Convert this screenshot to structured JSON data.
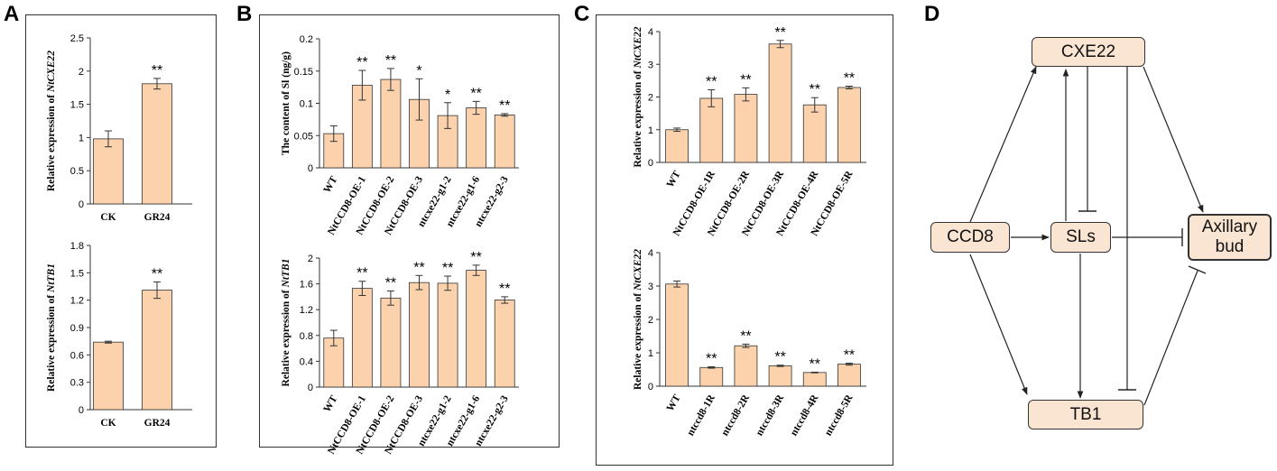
{
  "colors": {
    "bar": "#fcd2ad",
    "bar_stroke": "#333333",
    "node_fill": "#fae4d2"
  },
  "panels": {
    "A": "A",
    "B": "B",
    "C": "C",
    "D": "D"
  },
  "chart_data": [
    {
      "id": "A1",
      "type": "bar",
      "ylabel": [
        "Relative expression of ",
        "NtCXE22"
      ],
      "ylim": [
        0,
        2.5
      ],
      "yticks": [
        "0",
        "0.5",
        "1",
        "1.5",
        "2",
        "2.5"
      ],
      "categories": [
        "CK",
        "GR24"
      ],
      "values": [
        0.98,
        1.81
      ],
      "errors": [
        0.12,
        0.08
      ],
      "sig": [
        "",
        "**"
      ]
    },
    {
      "id": "A2",
      "type": "bar",
      "ylabel": [
        "Relative expression of ",
        "NtTB1"
      ],
      "ylim": [
        0,
        1.8
      ],
      "yticks": [
        "0",
        "0.3",
        "0.6",
        "0.9",
        "1.2",
        "1.5",
        "1.8"
      ],
      "categories": [
        "CK",
        "GR24"
      ],
      "values": [
        0.74,
        1.31
      ],
      "errors": [
        0.01,
        0.09
      ],
      "sig": [
        "",
        "**"
      ]
    },
    {
      "id": "B1",
      "type": "bar",
      "ylabel": [
        "The content of Sl (ng/g)",
        ""
      ],
      "ylim": [
        0,
        0.2
      ],
      "yticks": [
        "0",
        "0.05",
        "0.1",
        "0.15",
        "0.2"
      ],
      "categories": [
        "WT",
        "NtCCD8-OE-1",
        "NtCCD8-OE-2",
        "NtCCD8-OE-3",
        "ntcxe22-g1-2",
        "ntcxe22-g1-6",
        "ntcxe22-g2-3"
      ],
      "values": [
        0.053,
        0.128,
        0.137,
        0.106,
        0.081,
        0.093,
        0.082
      ],
      "errors": [
        0.012,
        0.023,
        0.017,
        0.032,
        0.02,
        0.01,
        0.002
      ],
      "sig": [
        "",
        "**",
        "**",
        "*",
        "*",
        "**",
        "**"
      ]
    },
    {
      "id": "B2",
      "type": "bar",
      "ylabel": [
        "Relative expression of ",
        "NtTB1"
      ],
      "ylim": [
        0,
        2
      ],
      "yticks": [
        "0",
        "0.4",
        "0.8",
        "1.2",
        "1.6",
        "2"
      ],
      "categories": [
        "WT",
        "NtCCD8-OE-1",
        "NtCCD8-OE-2",
        "NtCCD8-OE-3",
        "ntcxe22-g1-2",
        "ntcxe22-g1-6",
        "ntcxe22-g2-3"
      ],
      "values": [
        0.76,
        1.53,
        1.38,
        1.62,
        1.61,
        1.81,
        1.35
      ],
      "errors": [
        0.12,
        0.11,
        0.11,
        0.11,
        0.11,
        0.08,
        0.05
      ],
      "sig": [
        "",
        "**",
        "**",
        "**",
        "**",
        "**",
        "**"
      ]
    },
    {
      "id": "C1",
      "type": "bar",
      "ylabel": [
        "Relative expression of ",
        "NtCXE22"
      ],
      "ylim": [
        0,
        4
      ],
      "yticks": [
        "0",
        "1",
        "2",
        "3",
        "4"
      ],
      "categories": [
        "WT",
        "NtCCD8-OE-1R",
        "NtCCD8-OE-2R",
        "NtCCD8-OE-3R",
        "NtCCD8-OE-4R",
        "NtCCD8-OE-5R"
      ],
      "values": [
        1.0,
        1.96,
        2.08,
        3.62,
        1.76,
        2.29
      ],
      "errors": [
        0.05,
        0.26,
        0.2,
        0.11,
        0.22,
        0.04
      ],
      "sig": [
        "",
        "**",
        "**",
        "**",
        "**",
        "**"
      ]
    },
    {
      "id": "C2",
      "type": "bar",
      "ylabel": [
        "Relative expression of ",
        "NtCXE22"
      ],
      "ylim": [
        0,
        4
      ],
      "yticks": [
        "0",
        "1",
        "2",
        "3",
        "4"
      ],
      "categories": [
        "WT",
        "ntccd8-1R",
        "ntccd8-2R",
        "ntccd8-3R",
        "ntccd8-4R",
        "ntccd8-5R"
      ],
      "values": [
        3.06,
        0.56,
        1.21,
        0.61,
        0.41,
        0.66
      ],
      "errors": [
        0.09,
        0.02,
        0.05,
        0.02,
        0.01,
        0.03
      ],
      "sig": [
        "",
        "**",
        "**",
        "**",
        "**",
        "**"
      ]
    }
  ],
  "diagram": {
    "nodes": {
      "cxe22": "CXE22",
      "ccd8": "CCD8",
      "sls": "SLs",
      "axillary_line1": "Axillary",
      "axillary_line2": "bud",
      "tb1": "TB1"
    }
  }
}
